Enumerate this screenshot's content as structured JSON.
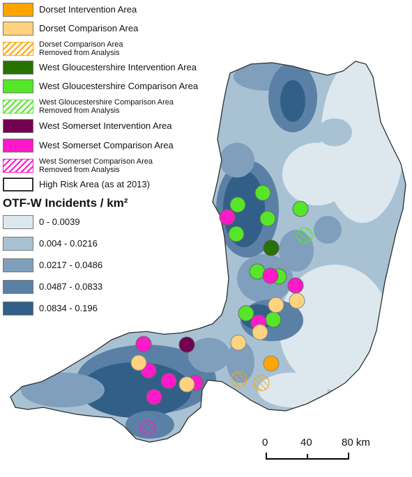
{
  "legend": {
    "items": [
      {
        "label": "Dorset Intervention Area",
        "color": "#ffa500"
      },
      {
        "label": "Dorset Comparison Area",
        "color": "#ffd27f"
      },
      {
        "label": "Dorset Comparison Area",
        "label2": "Removed from Analysis",
        "color": "#ffa500"
      },
      {
        "label": "West Gloucestershire Intervention Area",
        "color": "#267300"
      },
      {
        "label": "West Gloucestershire Comparison Area",
        "color": "#55e62a"
      },
      {
        "label": "West Gloucestershire Comparison Area",
        "label2": "Removed from Analysis",
        "color": "#55e62a"
      },
      {
        "label": "West Somerset Intervention Area",
        "color": "#730050"
      },
      {
        "label": "West Somerset Comparison Area",
        "color": "#ff19c8"
      },
      {
        "label": "West Somerset Comparison Area",
        "label2": "Removed from Analysis",
        "color": "#ff19c8"
      },
      {
        "label": "High Risk Area (as at 2013)",
        "color": "#ffffff"
      }
    ],
    "density_title": "OTF-W Incidents / km²",
    "density_classes": [
      {
        "label": "0 - 0.0039",
        "color": "#dce8ee"
      },
      {
        "label": "0.004 - 0.0216",
        "color": "#a8c2d4"
      },
      {
        "label": "0.0217 - 0.0486",
        "color": "#7f9fbd"
      },
      {
        "label": "0.0487 - 0.0833",
        "color": "#5b80a5"
      },
      {
        "label": "0.0834 - 0.196",
        "color": "#325f88"
      }
    ]
  },
  "scale_bar": {
    "ticks": [
      "0",
      "40",
      "80 km"
    ]
  }
}
